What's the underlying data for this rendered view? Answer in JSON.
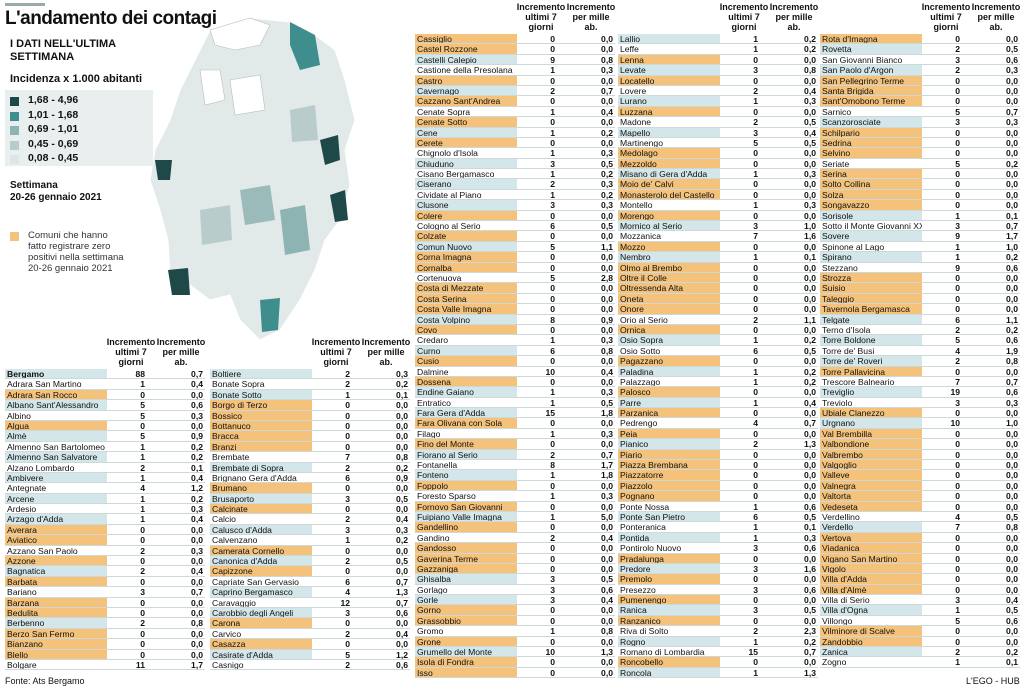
{
  "header": {
    "title": "L'andamento dei contagi",
    "subtitle": "I DATI NELL'ULTIMA SETTIMANA",
    "legend_title": "Incidenza x 1.000 abitanti",
    "legend_items": [
      "1,68 - 4,96",
      "1,01 - 1,68",
      "0,69 - 1,01",
      "0,45 - 0,69",
      "0,08 - 0,45"
    ],
    "week_label": "Settimana",
    "week": "20-26 gennaio 2021",
    "zero_note": "Comuni che hanno fatto registrare zero positivi nella settimana 20-26 gennaio 2021"
  },
  "columns": [
    "Incremento ultimi 7 giorni",
    "Incremento per mille ab."
  ],
  "tables": [
    {
      "rows": [
        [
          "Bergamo",
          88,
          "0,7"
        ],
        [
          "Adrara San Martino",
          1,
          "0,4"
        ],
        [
          "Adrara San Rocco",
          0,
          "0,0"
        ],
        [
          "Albano Sant'Alessandro",
          5,
          "0,6"
        ],
        [
          "Albino",
          5,
          "0,3"
        ],
        [
          "Algua",
          0,
          "0,0"
        ],
        [
          "Almè",
          5,
          "0,9"
        ],
        [
          "Almenno San Bartolomeo",
          1,
          "0,2"
        ],
        [
          "Almenno San Salvatore",
          1,
          "0,2"
        ],
        [
          "Alzano Lombardo",
          2,
          "0,1"
        ],
        [
          "Ambivere",
          1,
          "0,4"
        ],
        [
          "Antegnate",
          4,
          "1,2"
        ],
        [
          "Arcene",
          1,
          "0,2"
        ],
        [
          "Ardesio",
          1,
          "0,3"
        ],
        [
          "Arzago d'Adda",
          1,
          "0,4"
        ],
        [
          "Averara",
          0,
          "0,0"
        ],
        [
          "Aviatico",
          0,
          "0,0"
        ],
        [
          "Azzano San Paolo",
          2,
          "0,3"
        ],
        [
          "Azzone",
          0,
          "0,0"
        ],
        [
          "Bagnatica",
          2,
          "0,4"
        ],
        [
          "Barbata",
          0,
          "0,0"
        ],
        [
          "Bariano",
          3,
          "0,7"
        ],
        [
          "Barzana",
          0,
          "0,0"
        ],
        [
          "Bedulita",
          0,
          "0,0"
        ],
        [
          "Berbenno",
          2,
          "0,8"
        ],
        [
          "Berzo San Fermo",
          0,
          "0,0"
        ],
        [
          "Bianzano",
          0,
          "0,0"
        ],
        [
          "Blello",
          0,
          "0,0"
        ],
        [
          "Bolgare",
          11,
          "1,7"
        ]
      ]
    },
    {
      "rows": [
        [
          "Boltiere",
          2,
          "0,3"
        ],
        [
          "Bonate Sopra",
          2,
          "0,2"
        ],
        [
          "Bonate Sotto",
          1,
          "0,1"
        ],
        [
          "Borgo di Terzo",
          0,
          "0,0"
        ],
        [
          "Bossico",
          0,
          "0,0"
        ],
        [
          "Bottanuco",
          0,
          "0,0"
        ],
        [
          "Bracca",
          0,
          "0,0"
        ],
        [
          "Branzi",
          0,
          "0,0"
        ],
        [
          "Brembate",
          7,
          "0,8"
        ],
        [
          "Brembate di Sopra",
          2,
          "0,2"
        ],
        [
          "Brignano Gera d'Adda",
          6,
          "0,9"
        ],
        [
          "Brumano",
          0,
          "0,0"
        ],
        [
          "Brusaporto",
          3,
          "0,5"
        ],
        [
          "Calcinate",
          0,
          "0,0"
        ],
        [
          "Calcio",
          2,
          "0,4"
        ],
        [
          "Calusco d'Adda",
          3,
          "0,3"
        ],
        [
          "Calvenzano",
          1,
          "0,2"
        ],
        [
          "Camerata Cornello",
          0,
          "0,0"
        ],
        [
          "Canonica d'Adda",
          2,
          "0,5"
        ],
        [
          "Capizzone",
          0,
          "0,0"
        ],
        [
          "Capriate San Gervasio",
          6,
          "0,7"
        ],
        [
          "Caprino Bergamasco",
          4,
          "1,3"
        ],
        [
          "Caravaggio",
          12,
          "0,7"
        ],
        [
          "Carobbio degli Angeli",
          3,
          "0,6"
        ],
        [
          "Carona",
          0,
          "0,0"
        ],
        [
          "Carvico",
          2,
          "0,4"
        ],
        [
          "Casazza",
          0,
          "0,0"
        ],
        [
          "Casirate d'Adda",
          5,
          "1,2"
        ],
        [
          "Casnigo",
          2,
          "0,6"
        ]
      ]
    },
    {
      "rows": [
        [
          "Cassiglio",
          0,
          "0,0"
        ],
        [
          "Castel Rozzone",
          0,
          "0,0"
        ],
        [
          "Castelli Calepio",
          9,
          "0,8"
        ],
        [
          "Castione della Presolana",
          1,
          "0,3"
        ],
        [
          "Castro",
          0,
          "0,0"
        ],
        [
          "Cavernago",
          2,
          "0,7"
        ],
        [
          "Cazzano Sant'Andrea",
          0,
          "0,0"
        ],
        [
          "Cenate Sopra",
          1,
          "0,4"
        ],
        [
          "Cenate Sotto",
          0,
          "0,0"
        ],
        [
          "Cene",
          1,
          "0,2"
        ],
        [
          "Cerete",
          0,
          "0,0"
        ],
        [
          "Chignolo d'Isola",
          1,
          "0,3"
        ],
        [
          "Chiuduno",
          3,
          "0,5"
        ],
        [
          "Cisano Bergamasco",
          1,
          "0,2"
        ],
        [
          "Ciserano",
          2,
          "0,3"
        ],
        [
          "Cividate al Piano",
          1,
          "0,2"
        ],
        [
          "Clusone",
          3,
          "0,3"
        ],
        [
          "Colere",
          0,
          "0,0"
        ],
        [
          "Cologno al Serio",
          6,
          "0,5"
        ],
        [
          "Colzate",
          0,
          "0,0"
        ],
        [
          "Comun Nuovo",
          5,
          "1,1"
        ],
        [
          "Corna Imagna",
          0,
          "0,0"
        ],
        [
          "Cornalba",
          0,
          "0,0"
        ],
        [
          "Cortenuova",
          5,
          "2,8"
        ],
        [
          "Costa di Mezzate",
          0,
          "0,0"
        ],
        [
          "Costa Serina",
          0,
          "0,0"
        ],
        [
          "Costa Valle Imagna",
          0,
          "0,0"
        ],
        [
          "Costa Volpino",
          8,
          "0,9"
        ],
        [
          "Covo",
          0,
          "0,0"
        ],
        [
          "Credaro",
          1,
          "0,3"
        ],
        [
          "Curno",
          6,
          "0,8"
        ],
        [
          "Cusio",
          0,
          "0,0"
        ],
        [
          "Dalmine",
          10,
          "0,4"
        ],
        [
          "Dossena",
          0,
          "0,0"
        ],
        [
          "Endine Gaiano",
          1,
          "0,3"
        ],
        [
          "Entratico",
          1,
          "0,5"
        ],
        [
          "Fara Gera d'Adda",
          15,
          "1,8"
        ],
        [
          "Fara Olivana con Sola",
          0,
          "0,0"
        ],
        [
          "Filago",
          1,
          "0,3"
        ],
        [
          "Fino del Monte",
          0,
          "0,0"
        ],
        [
          "Fiorano al Serio",
          2,
          "0,7"
        ],
        [
          "Fontanella",
          8,
          "1,7"
        ],
        [
          "Fonteno",
          1,
          "1,8"
        ],
        [
          "Foppolo",
          0,
          "0,0"
        ],
        [
          "Foresto Sparso",
          1,
          "0,3"
        ],
        [
          "Fornovo San Giovanni",
          0,
          "0,0"
        ],
        [
          "Fuipiano Valle Imagna",
          1,
          "5,0"
        ],
        [
          "Gandellino",
          0,
          "0,0"
        ],
        [
          "Gandino",
          2,
          "0,4"
        ],
        [
          "Gandosso",
          0,
          "0,0"
        ],
        [
          "Gaverina Terme",
          0,
          "0,0"
        ],
        [
          "Gazzaniga",
          0,
          "0,0"
        ],
        [
          "Ghisalba",
          3,
          "0,5"
        ],
        [
          "Gorlago",
          3,
          "0,6"
        ],
        [
          "Gorle",
          3,
          "0,4"
        ],
        [
          "Gorno",
          0,
          "0,0"
        ],
        [
          "Grassobbio",
          0,
          "0,0"
        ],
        [
          "Gromo",
          1,
          "0,8"
        ],
        [
          "Grone",
          0,
          "0,0"
        ],
        [
          "Grumello del Monte",
          10,
          "1,3"
        ],
        [
          "Isola di Fondra",
          0,
          "0,0"
        ],
        [
          "Isso",
          0,
          "0,0"
        ]
      ]
    },
    {
      "rows": [
        [
          "Lallio",
          1,
          "0,2"
        ],
        [
          "Leffe",
          1,
          "0,2"
        ],
        [
          "Lenna",
          0,
          "0,0"
        ],
        [
          "Levate",
          3,
          "0,8"
        ],
        [
          "Locatello",
          0,
          "0,0"
        ],
        [
          "Lovere",
          2,
          "0,4"
        ],
        [
          "Lurano",
          1,
          "0,3"
        ],
        [
          "Luzzana",
          0,
          "0,0"
        ],
        [
          "Madone",
          2,
          "0,5"
        ],
        [
          "Mapello",
          3,
          "0,4"
        ],
        [
          "Martinengo",
          5,
          "0,5"
        ],
        [
          "Medolago",
          0,
          "0,0"
        ],
        [
          "Mezzoldo",
          0,
          "0,0"
        ],
        [
          "Misano di Gera d'Adda",
          1,
          "0,3"
        ],
        [
          "Moio de' Calvi",
          0,
          "0,0"
        ],
        [
          "Monasterolo del Castello",
          0,
          "0,0"
        ],
        [
          "Montello",
          1,
          "0,3"
        ],
        [
          "Morengo",
          0,
          "0,0"
        ],
        [
          "Mornico al Serio",
          3,
          "1,0"
        ],
        [
          "Mozzanica",
          7,
          "1,6"
        ],
        [
          "Mozzo",
          0,
          "0,0"
        ],
        [
          "Nembro",
          1,
          "0,1"
        ],
        [
          "Olmo al Brembo",
          0,
          "0,0"
        ],
        [
          "Oltre il Colle",
          0,
          "0,0"
        ],
        [
          "Oltressenda Alta",
          0,
          "0,0"
        ],
        [
          "Oneta",
          0,
          "0,0"
        ],
        [
          "Onore",
          0,
          "0,0"
        ],
        [
          "Orio al Serio",
          2,
          "1,1"
        ],
        [
          "Ornica",
          0,
          "0,0"
        ],
        [
          "Osio Sopra",
          1,
          "0,2"
        ],
        [
          "Osio Sotto",
          6,
          "0,5"
        ],
        [
          "Pagazzano",
          0,
          "0,0"
        ],
        [
          "Paladina",
          1,
          "0,2"
        ],
        [
          "Palazzago",
          1,
          "0,2"
        ],
        [
          "Palosco",
          0,
          "0,0"
        ],
        [
          "Parre",
          1,
          "0,4"
        ],
        [
          "Parzanica",
          0,
          "0,0"
        ],
        [
          "Pedrengo",
          4,
          "0,7"
        ],
        [
          "Peia",
          0,
          "0,0"
        ],
        [
          "Pianico",
          2,
          "1,3"
        ],
        [
          "Piario",
          0,
          "0,0"
        ],
        [
          "Piazza Brembana",
          0,
          "0,0"
        ],
        [
          "Piazzatorre",
          0,
          "0,0"
        ],
        [
          "Piazzolo",
          0,
          "0,0"
        ],
        [
          "Pognano",
          0,
          "0,0"
        ],
        [
          "Ponte Nossa",
          1,
          "0,6"
        ],
        [
          "Ponte San Pietro",
          6,
          "0,5"
        ],
        [
          "Ponteranica",
          1,
          "0,1"
        ],
        [
          "Pontida",
          1,
          "0,3"
        ],
        [
          "Pontirolo Nuovo",
          3,
          "0,6"
        ],
        [
          "Pradalunga",
          0,
          "0,0"
        ],
        [
          "Predore",
          3,
          "1,6"
        ],
        [
          "Premolo",
          0,
          "0,0"
        ],
        [
          "Presezzo",
          3,
          "0,6"
        ],
        [
          "Pumenengo",
          0,
          "0,0"
        ],
        [
          "Ranica",
          3,
          "0,5"
        ],
        [
          "Ranzanico",
          0,
          "0,0"
        ],
        [
          "Riva di Solto",
          2,
          "2,3"
        ],
        [
          "Rogno",
          1,
          "0,2"
        ],
        [
          "Romano di Lombardia",
          15,
          "0,7"
        ],
        [
          "Roncobello",
          0,
          "0,0"
        ],
        [
          "Roncola",
          1,
          "1,3"
        ]
      ]
    },
    {
      "rows": [
        [
          "Rota d'Imagna",
          0,
          "0,0"
        ],
        [
          "Rovetta",
          2,
          "0,5"
        ],
        [
          "San Giovanni Bianco",
          3,
          "0,6"
        ],
        [
          "San Paolo d'Argon",
          2,
          "0,3"
        ],
        [
          "San Pellegrino Terme",
          0,
          "0,0"
        ],
        [
          "Santa Brigida",
          0,
          "0,0"
        ],
        [
          "Sant'Omobono Terme",
          0,
          "0,0"
        ],
        [
          "Sarnico",
          5,
          "0,7"
        ],
        [
          "Scanzorosciate",
          3,
          "0,3"
        ],
        [
          "Schilpario",
          0,
          "0,0"
        ],
        [
          "Sedrina",
          0,
          "0,0"
        ],
        [
          "Selvino",
          0,
          "0,0"
        ],
        [
          "Seriate",
          5,
          "0,2"
        ],
        [
          "Serina",
          0,
          "0,0"
        ],
        [
          "Solto Collina",
          0,
          "0,0"
        ],
        [
          "Solza",
          0,
          "0,0"
        ],
        [
          "Songavazzo",
          0,
          "0,0"
        ],
        [
          "Sorisole",
          1,
          "0,1"
        ],
        [
          "Sotto il Monte Giovanni XXIII",
          3,
          "0,7"
        ],
        [
          "Sovere",
          9,
          "1,7"
        ],
        [
          "Spinone al Lago",
          1,
          "1,0"
        ],
        [
          "Spirano",
          1,
          "0,2"
        ],
        [
          "Stezzano",
          9,
          "0,6"
        ],
        [
          "Strozza",
          0,
          "0,0"
        ],
        [
          "Suisio",
          0,
          "0,0"
        ],
        [
          "Taleggio",
          0,
          "0,0"
        ],
        [
          "Tavernola Bergamasca",
          0,
          "0,0"
        ],
        [
          "Telgate",
          6,
          "1,1"
        ],
        [
          "Terno d'Isola",
          2,
          "0,2"
        ],
        [
          "Torre Boldone",
          5,
          "0,6"
        ],
        [
          "Torre de' Busi",
          4,
          "1,9"
        ],
        [
          "Torre de' Roveri",
          2,
          "0,8"
        ],
        [
          "Torre Pallavicina",
          0,
          "0,0"
        ],
        [
          "Trescore Balneario",
          7,
          "0,7"
        ],
        [
          "Treviglio",
          19,
          "0,6"
        ],
        [
          "Treviolo",
          3,
          "0,3"
        ],
        [
          "Ubiale Clanezzo",
          0,
          "0,0"
        ],
        [
          "Urgnano",
          10,
          "1,0"
        ],
        [
          "Val Brembilla",
          0,
          "0,0"
        ],
        [
          "Valbondione",
          0,
          "0,0"
        ],
        [
          "Valbrembo",
          0,
          "0,0"
        ],
        [
          "Valgoglio",
          0,
          "0,0"
        ],
        [
          "Valleve",
          0,
          "0,0"
        ],
        [
          "Valnegra",
          0,
          "0,0"
        ],
        [
          "Valtorta",
          0,
          "0,0"
        ],
        [
          "Vedeseta",
          0,
          "0,0"
        ],
        [
          "Verdellino",
          4,
          "0,5"
        ],
        [
          "Verdello",
          7,
          "0,8"
        ],
        [
          "Vertova",
          0,
          "0,0"
        ],
        [
          "Viadanica",
          0,
          "0,0"
        ],
        [
          "Vigano San Martino",
          0,
          "0,0"
        ],
        [
          "Vigolo",
          0,
          "0,0"
        ],
        [
          "Villa d'Adda",
          0,
          "0,0"
        ],
        [
          "Villa d'Almè",
          0,
          "0,0"
        ],
        [
          "Villa di Serio",
          3,
          "0,4"
        ],
        [
          "Villa d'Ogna",
          1,
          "0,5"
        ],
        [
          "Villongo",
          5,
          "0,6"
        ],
        [
          "Vilminore di Scalve",
          0,
          "0,0"
        ],
        [
          "Zandobbio",
          0,
          "0,0"
        ],
        [
          "Zanica",
          2,
          "0,2"
        ],
        [
          "Zogno",
          1,
          "0,1"
        ]
      ]
    }
  ],
  "footer": {
    "source": "Fonte: Ats Bergamo",
    "credit": "L'EGO - HUB"
  }
}
